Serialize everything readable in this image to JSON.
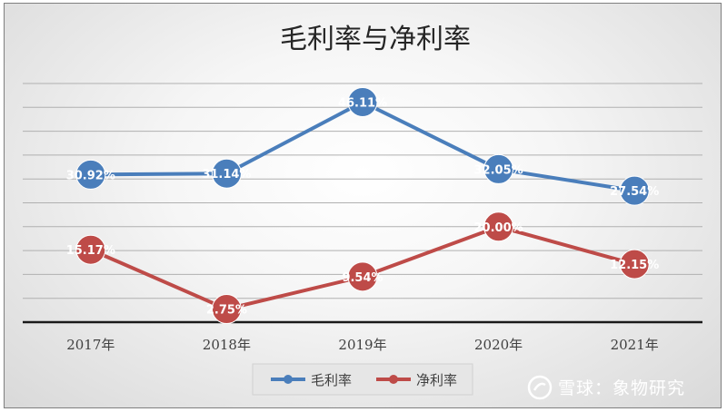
{
  "chart_data": {
    "type": "line",
    "title": "毛利率与净利率",
    "categories": [
      "2017年",
      "2018年",
      "2019年",
      "2020年",
      "2021年"
    ],
    "series": [
      {
        "name": "毛利率",
        "values": [
          30.92,
          31.14,
          46.11,
          32.05,
          27.54
        ],
        "labels": [
          "30.92%",
          "31.14%",
          "46.11%",
          "32.05%",
          "27.54%"
        ],
        "color": "#4a7ebb"
      },
      {
        "name": "净利率",
        "values": [
          15.17,
          2.75,
          9.54,
          20.0,
          12.15
        ],
        "labels": [
          "15.17%",
          "2.75%",
          "9.54%",
          "20.00%",
          "12.15%"
        ],
        "color": "#be4b48"
      }
    ],
    "ylim": [
      0,
      50
    ],
    "grid": true,
    "legend": "bottom"
  },
  "watermark": {
    "text": "雪球：象物研究"
  }
}
